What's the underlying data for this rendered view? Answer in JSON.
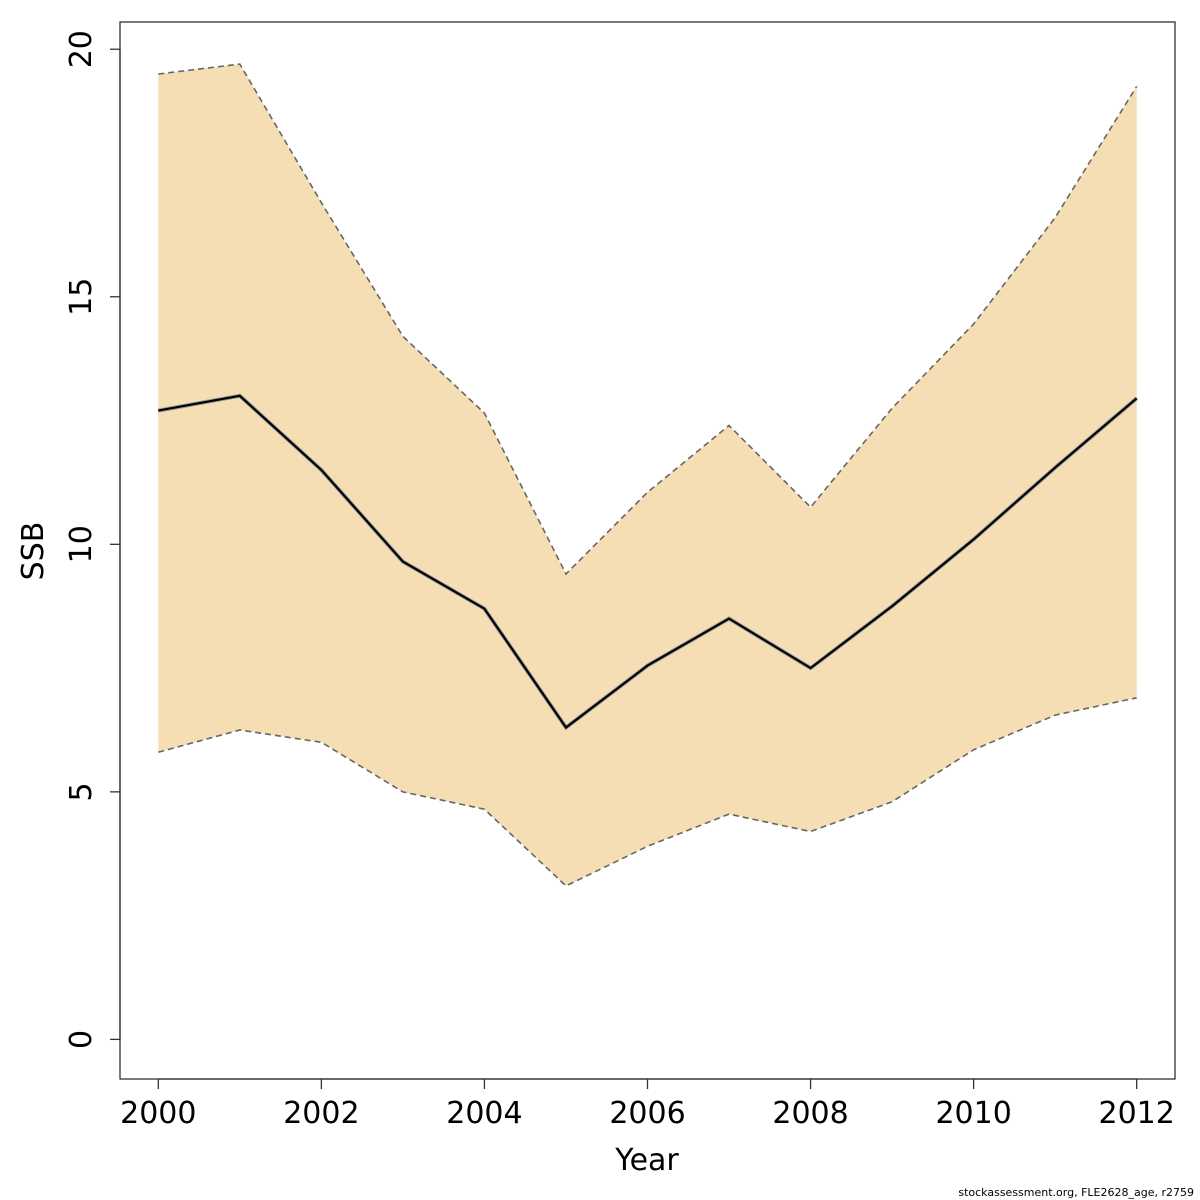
{
  "chart_data": {
    "type": "line",
    "xlabel": "Year",
    "ylabel": "SSB",
    "xlim": [
      1999.53,
      2012.47
    ],
    "ylim": [
      -0.8,
      20.55
    ],
    "x_ticks": [
      2000,
      2002,
      2004,
      2006,
      2008,
      2010,
      2012
    ],
    "y_ticks": [
      0,
      5,
      10,
      15,
      20
    ],
    "x": [
      2000,
      2001,
      2002,
      2003,
      2004,
      2005,
      2006,
      2007,
      2008,
      2009,
      2010,
      2011,
      2012
    ],
    "series": [
      {
        "role": "estimate",
        "values": [
          12.7,
          13.0,
          11.5,
          9.65,
          8.7,
          6.3,
          7.55,
          8.5,
          7.5,
          8.75,
          10.1,
          11.55,
          12.95
        ]
      },
      {
        "role": "upper_ci",
        "values": [
          19.5,
          19.7,
          16.9,
          14.2,
          12.65,
          9.4,
          11.05,
          12.4,
          10.75,
          12.75,
          14.45,
          16.6,
          19.25
        ]
      },
      {
        "role": "lower_ci",
        "values": [
          5.8,
          6.25,
          6.0,
          5.0,
          4.65,
          3.1,
          3.9,
          4.55,
          4.2,
          4.8,
          5.85,
          6.55,
          6.9
        ]
      }
    ],
    "grid": false,
    "colors": {
      "band": "#f5deb3",
      "estimate": "#000000",
      "ci_line": "#666666"
    }
  },
  "footnote": "stockassessment.org, FLE2628_age, r2759"
}
